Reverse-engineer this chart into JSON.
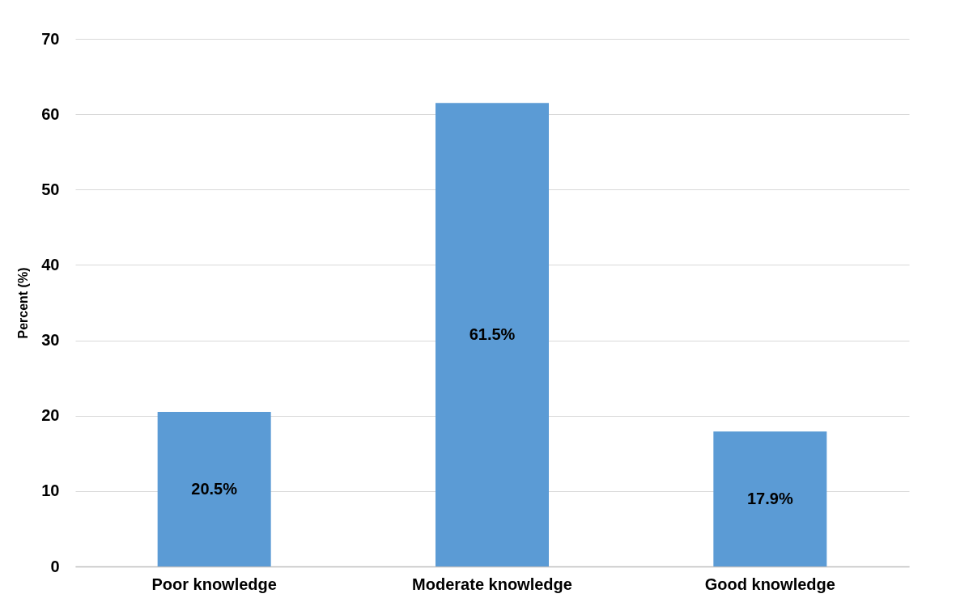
{
  "chart_data": {
    "type": "bar",
    "ylabel": "Percent (%)",
    "categories": [
      "Poor knowledge",
      "Moderate knowledge",
      "Good knowledge"
    ],
    "values": [
      20.5,
      61.5,
      17.9
    ],
    "value_labels": [
      "20.5%",
      "61.5%",
      "17.9%"
    ],
    "color": "#5b9bd5",
    "ylim": [
      0,
      70
    ],
    "yticks": [
      0,
      10,
      20,
      30,
      40,
      50,
      60,
      70
    ],
    "grid": "y"
  }
}
